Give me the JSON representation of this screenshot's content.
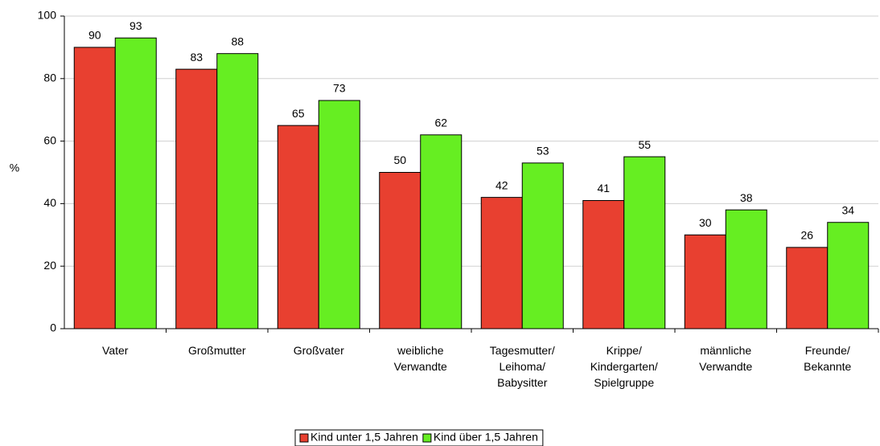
{
  "chart_data": {
    "type": "bar",
    "ylabel": "%",
    "categories": [
      [
        "Vater"
      ],
      [
        "Großmutter"
      ],
      [
        "Großvater"
      ],
      [
        "weibliche",
        "Verwandte"
      ],
      [
        "Tagesmutter/",
        "Leihoma/",
        "Babysitter"
      ],
      [
        "Krippe/",
        "Kindergarten/",
        "Spielgruppe"
      ],
      [
        "männliche",
        "Verwandte"
      ],
      [
        "Freunde/",
        "Bekannte"
      ]
    ],
    "series": [
      {
        "name": "Kind unter 1,5 Jahren",
        "color": "#e84030",
        "values": [
          90,
          83,
          65,
          50,
          42,
          41,
          30,
          26
        ]
      },
      {
        "name": "Kind über 1,5 Jahren",
        "color": "#66ee22",
        "values": [
          93,
          88,
          73,
          62,
          53,
          55,
          38,
          34
        ]
      }
    ],
    "ylim": [
      0,
      100
    ],
    "yticks": [
      0,
      20,
      40,
      60,
      80,
      100
    ],
    "grid": true,
    "legend": "bottom"
  }
}
